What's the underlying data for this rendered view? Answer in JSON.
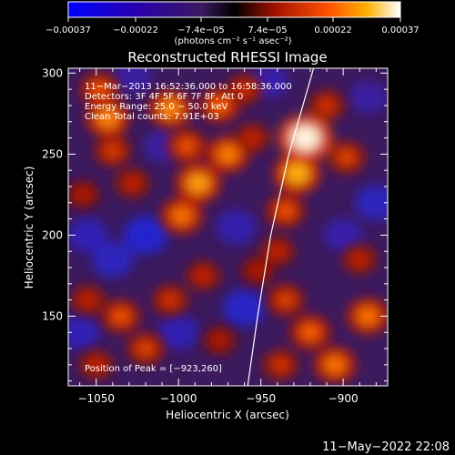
{
  "chart_data": {
    "type": "heatmap",
    "title": "Reconstructed RHESSI Image",
    "xlabel": "Heliocentric X (arcsec)",
    "ylabel": "Heliocentric Y (arcsec)",
    "xlim": [
      -1067,
      -873
    ],
    "ylim": [
      107,
      303
    ],
    "x_ticks": [
      -1050,
      -1000,
      -950,
      -900
    ],
    "x_tick_labels": [
      "−1050",
      "−1000",
      "−950",
      "−900"
    ],
    "y_ticks": [
      150,
      200,
      250,
      300
    ],
    "y_tick_labels": [
      "150",
      "200",
      "250",
      "300"
    ],
    "colorbar": {
      "range": [
        -0.00037,
        0.00037
      ],
      "ticks": [
        -0.00037,
        -0.00022,
        -7.4e-05,
        7.4e-05,
        0.00022,
        0.00037
      ],
      "tick_labels": [
        "−0.00037",
        "−0.00022",
        "−7.4e−05",
        "7.4e−05",
        "0.00022",
        "0.00037"
      ],
      "unit_label": "(photons cm⁻² s⁻¹ asec⁻²)",
      "colors": [
        "#0000ff",
        "#4b0082",
        "#3a1a60",
        "#000000",
        "#b01400",
        "#ff6000",
        "#ffc000",
        "#ffffff"
      ]
    },
    "annotations": [
      "11−Mar−2013 16:52:36.000 to 16:58:36.000",
      "Detectors: 3F 4F 5F 6F 7F 8F, Att 0",
      "Energy Range: 25.0 − 50.0 keV",
      "Clean    Total counts: 7.91E+03"
    ],
    "peak_label": "Position of Peak = [−923,260]",
    "peak": [
      -923,
      260
    ],
    "limb_curve": [
      [
        -958,
        107
      ],
      [
        -952,
        150
      ],
      [
        -944,
        200
      ],
      [
        -933,
        250
      ],
      [
        -918,
        303
      ]
    ],
    "emission_blobs": [
      {
        "x": -1048,
        "y": 290,
        "v": 0.00018
      },
      {
        "x": -1043,
        "y": 272,
        "v": 0.00024
      },
      {
        "x": -1040,
        "y": 252,
        "v": 0.00015
      },
      {
        "x": -1028,
        "y": 232,
        "v": 0.00012
      },
      {
        "x": -1005,
        "y": 278,
        "v": 0.00024
      },
      {
        "x": -995,
        "y": 255,
        "v": 0.00018
      },
      {
        "x": -988,
        "y": 232,
        "v": 0.00026
      },
      {
        "x": -998,
        "y": 212,
        "v": 0.00022
      },
      {
        "x": -975,
        "y": 280,
        "v": 0.0002
      },
      {
        "x": -970,
        "y": 250,
        "v": 0.00023
      },
      {
        "x": -960,
        "y": 290,
        "v": 0.00013
      },
      {
        "x": -955,
        "y": 260,
        "v": 0.00012
      },
      {
        "x": -923,
        "y": 260,
        "v": 0.00037
      },
      {
        "x": -928,
        "y": 238,
        "v": 0.00028
      },
      {
        "x": -935,
        "y": 215,
        "v": 0.00018
      },
      {
        "x": -910,
        "y": 280,
        "v": 0.00014
      },
      {
        "x": -898,
        "y": 248,
        "v": 0.00016
      },
      {
        "x": -940,
        "y": 190,
        "v": 0.00012
      },
      {
        "x": -952,
        "y": 178,
        "v": 0.0001
      },
      {
        "x": -1058,
        "y": 225,
        "v": 0.0001
      },
      {
        "x": -1055,
        "y": 160,
        "v": 0.00012
      },
      {
        "x": -1035,
        "y": 150,
        "v": 0.00018
      },
      {
        "x": -1020,
        "y": 130,
        "v": 0.00016
      },
      {
        "x": -1005,
        "y": 160,
        "v": 0.00014
      },
      {
        "x": -985,
        "y": 175,
        "v": 0.00012
      },
      {
        "x": -975,
        "y": 135,
        "v": 0.0001
      },
      {
        "x": -935,
        "y": 160,
        "v": 0.00016
      },
      {
        "x": -920,
        "y": 140,
        "v": 0.0002
      },
      {
        "x": -905,
        "y": 120,
        "v": 0.00022
      },
      {
        "x": -885,
        "y": 150,
        "v": 0.00022
      },
      {
        "x": -890,
        "y": 185,
        "v": 0.00012
      },
      {
        "x": -938,
        "y": 120,
        "v": 0.00014
      },
      {
        "x": -1050,
        "y": 120,
        "v": 0.00012
      }
    ],
    "negative_blobs": [
      {
        "x": -1020,
        "y": 200,
        "v": -0.00022
      },
      {
        "x": -1040,
        "y": 185,
        "v": -0.00018
      },
      {
        "x": -1055,
        "y": 200,
        "v": -0.00016
      },
      {
        "x": -1010,
        "y": 255,
        "v": -0.00012
      },
      {
        "x": -965,
        "y": 205,
        "v": -0.00015
      },
      {
        "x": -960,
        "y": 155,
        "v": -0.0002
      },
      {
        "x": -1000,
        "y": 140,
        "v": -0.00016
      },
      {
        "x": -880,
        "y": 220,
        "v": -0.00018
      },
      {
        "x": -900,
        "y": 200,
        "v": -0.00014
      },
      {
        "x": -885,
        "y": 285,
        "v": -0.00012
      },
      {
        "x": -945,
        "y": 295,
        "v": -0.00014
      },
      {
        "x": -1028,
        "y": 298,
        "v": -0.00012
      },
      {
        "x": -1060,
        "y": 140,
        "v": -0.00016
      }
    ]
  },
  "timestamp": "11−May−2022 22:08"
}
